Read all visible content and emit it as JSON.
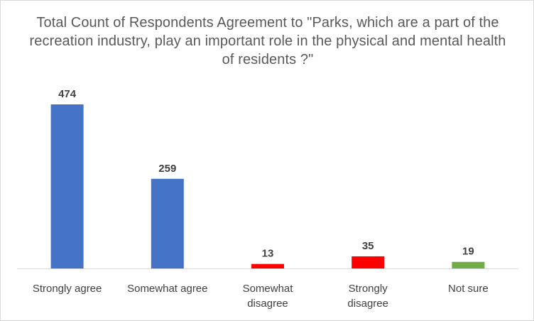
{
  "chart_data": {
    "type": "bar",
    "title": "Total Count of Respondents Agreement to \"Parks, which are a part of the recreation industry, play an important role in the physical and mental health of residents ?\"",
    "categories": [
      "Strongly agree",
      "Somewhat agree",
      "Somewhat disagree",
      "Strongly disagree",
      "Not sure"
    ],
    "values": [
      474,
      259,
      13,
      35,
      19
    ],
    "colors": [
      "#4472c4",
      "#4472c4",
      "#ff0000",
      "#ff0000",
      "#70ad47"
    ],
    "xlabel": "",
    "ylabel": "",
    "ylim": [
      0,
      474
    ],
    "grid": false,
    "data_labels": true
  }
}
